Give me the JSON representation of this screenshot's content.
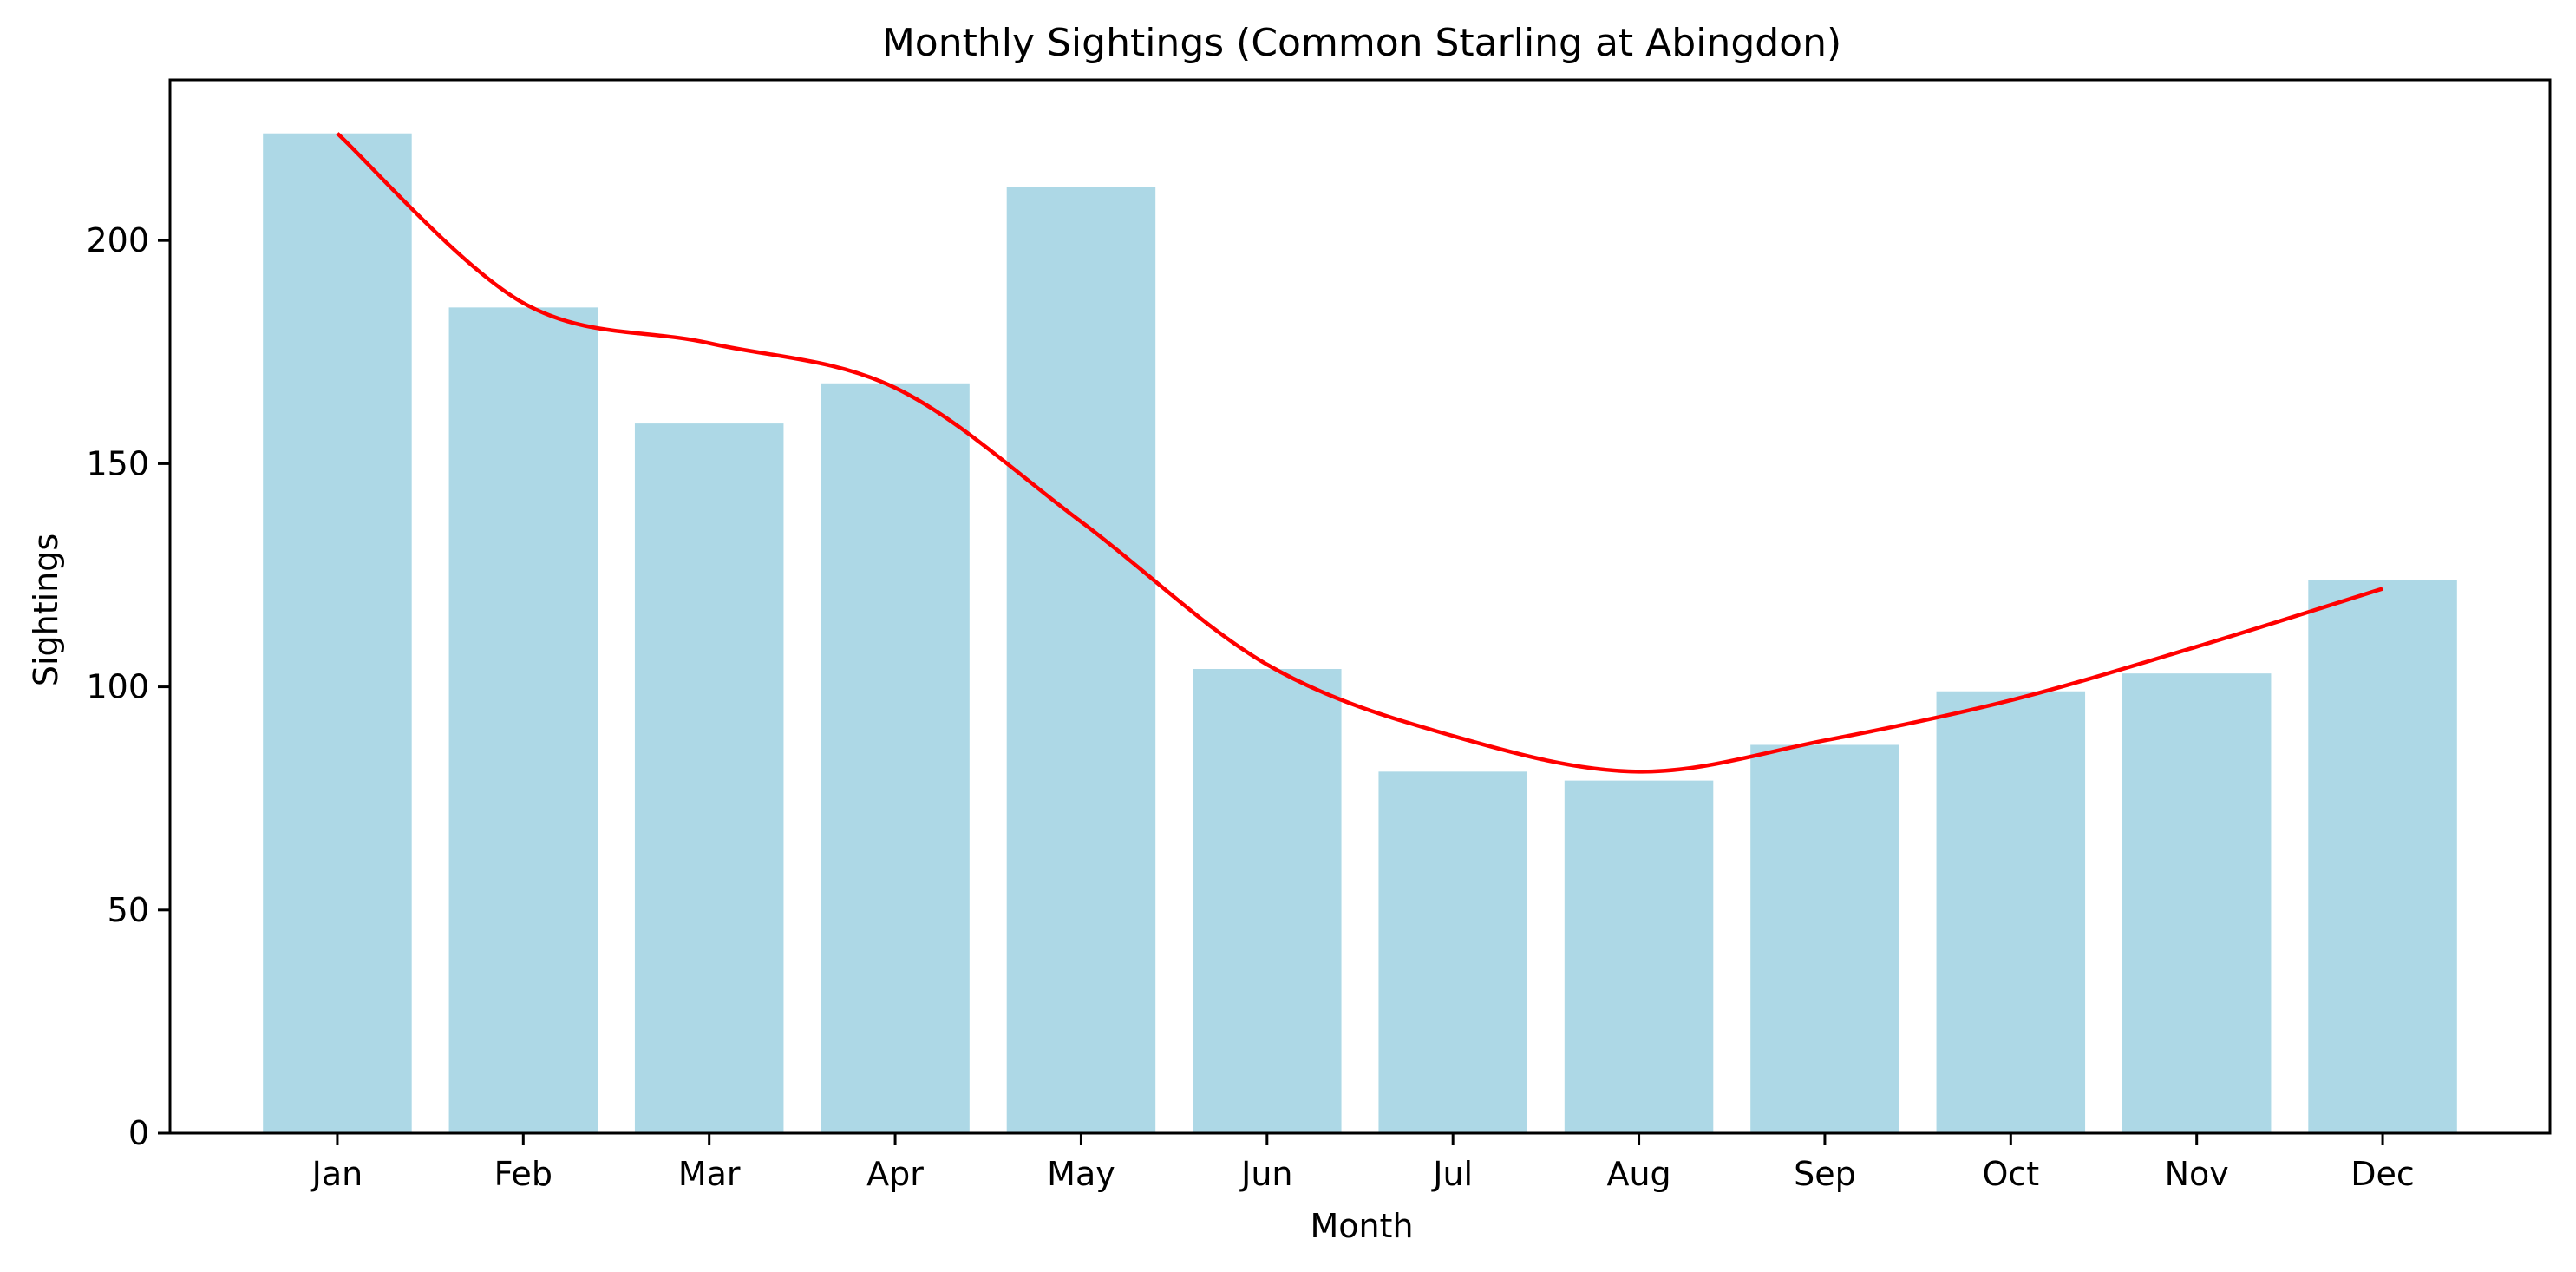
{
  "chart_data": {
    "type": "bar",
    "title": "Monthly Sightings (Common Starling at Abingdon)",
    "xlabel": "Month",
    "ylabel": "Sightings",
    "categories": [
      "Jan",
      "Feb",
      "Mar",
      "Apr",
      "May",
      "Jun",
      "Jul",
      "Aug",
      "Sep",
      "Oct",
      "Nov",
      "Dec"
    ],
    "values": [
      224,
      185,
      159,
      168,
      212,
      104,
      81,
      79,
      87,
      99,
      103,
      124
    ],
    "trend_values": [
      224,
      186,
      177,
      167,
      137,
      105,
      89,
      81,
      88,
      97,
      109,
      122
    ],
    "ylim": [
      0,
      236
    ],
    "yticks": [
      0,
      50,
      100,
      150,
      200
    ],
    "grid": false,
    "bar_color": "#add8e6",
    "trend_color": "#ff0000",
    "axis_color": "#000000"
  }
}
